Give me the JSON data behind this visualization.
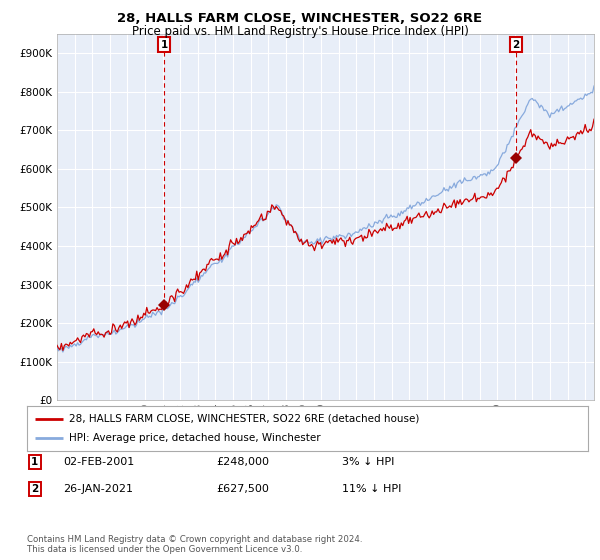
{
  "title_line1": "28, HALLS FARM CLOSE, WINCHESTER, SO22 6RE",
  "title_line2": "Price paid vs. HM Land Registry's House Price Index (HPI)",
  "legend_line1": "28, HALLS FARM CLOSE, WINCHESTER, SO22 6RE (detached house)",
  "legend_line2": "HPI: Average price, detached house, Winchester",
  "annotation1_date": "02-FEB-2001",
  "annotation1_price": "£248,000",
  "annotation1_hpi": "3% ↓ HPI",
  "annotation2_date": "26-JAN-2021",
  "annotation2_price": "£627,500",
  "annotation2_hpi": "11% ↓ HPI",
  "footer": "Contains HM Land Registry data © Crown copyright and database right 2024.\nThis data is licensed under the Open Government Licence v3.0.",
  "sale1_year": 2001.08,
  "sale1_value": 248000,
  "sale2_year": 2021.07,
  "sale2_value": 627500,
  "line_color_price": "#cc0000",
  "line_color_hpi": "#88aadd",
  "sale_dot_color": "#990000",
  "annotation_box_color": "#cc0000",
  "ylim_min": 0,
  "ylim_max": 950000,
  "xmin": 1995.0,
  "xmax": 2025.5,
  "background_color": "#ffffff",
  "plot_bg_color": "#e8eef8",
  "grid_color": "#ffffff"
}
